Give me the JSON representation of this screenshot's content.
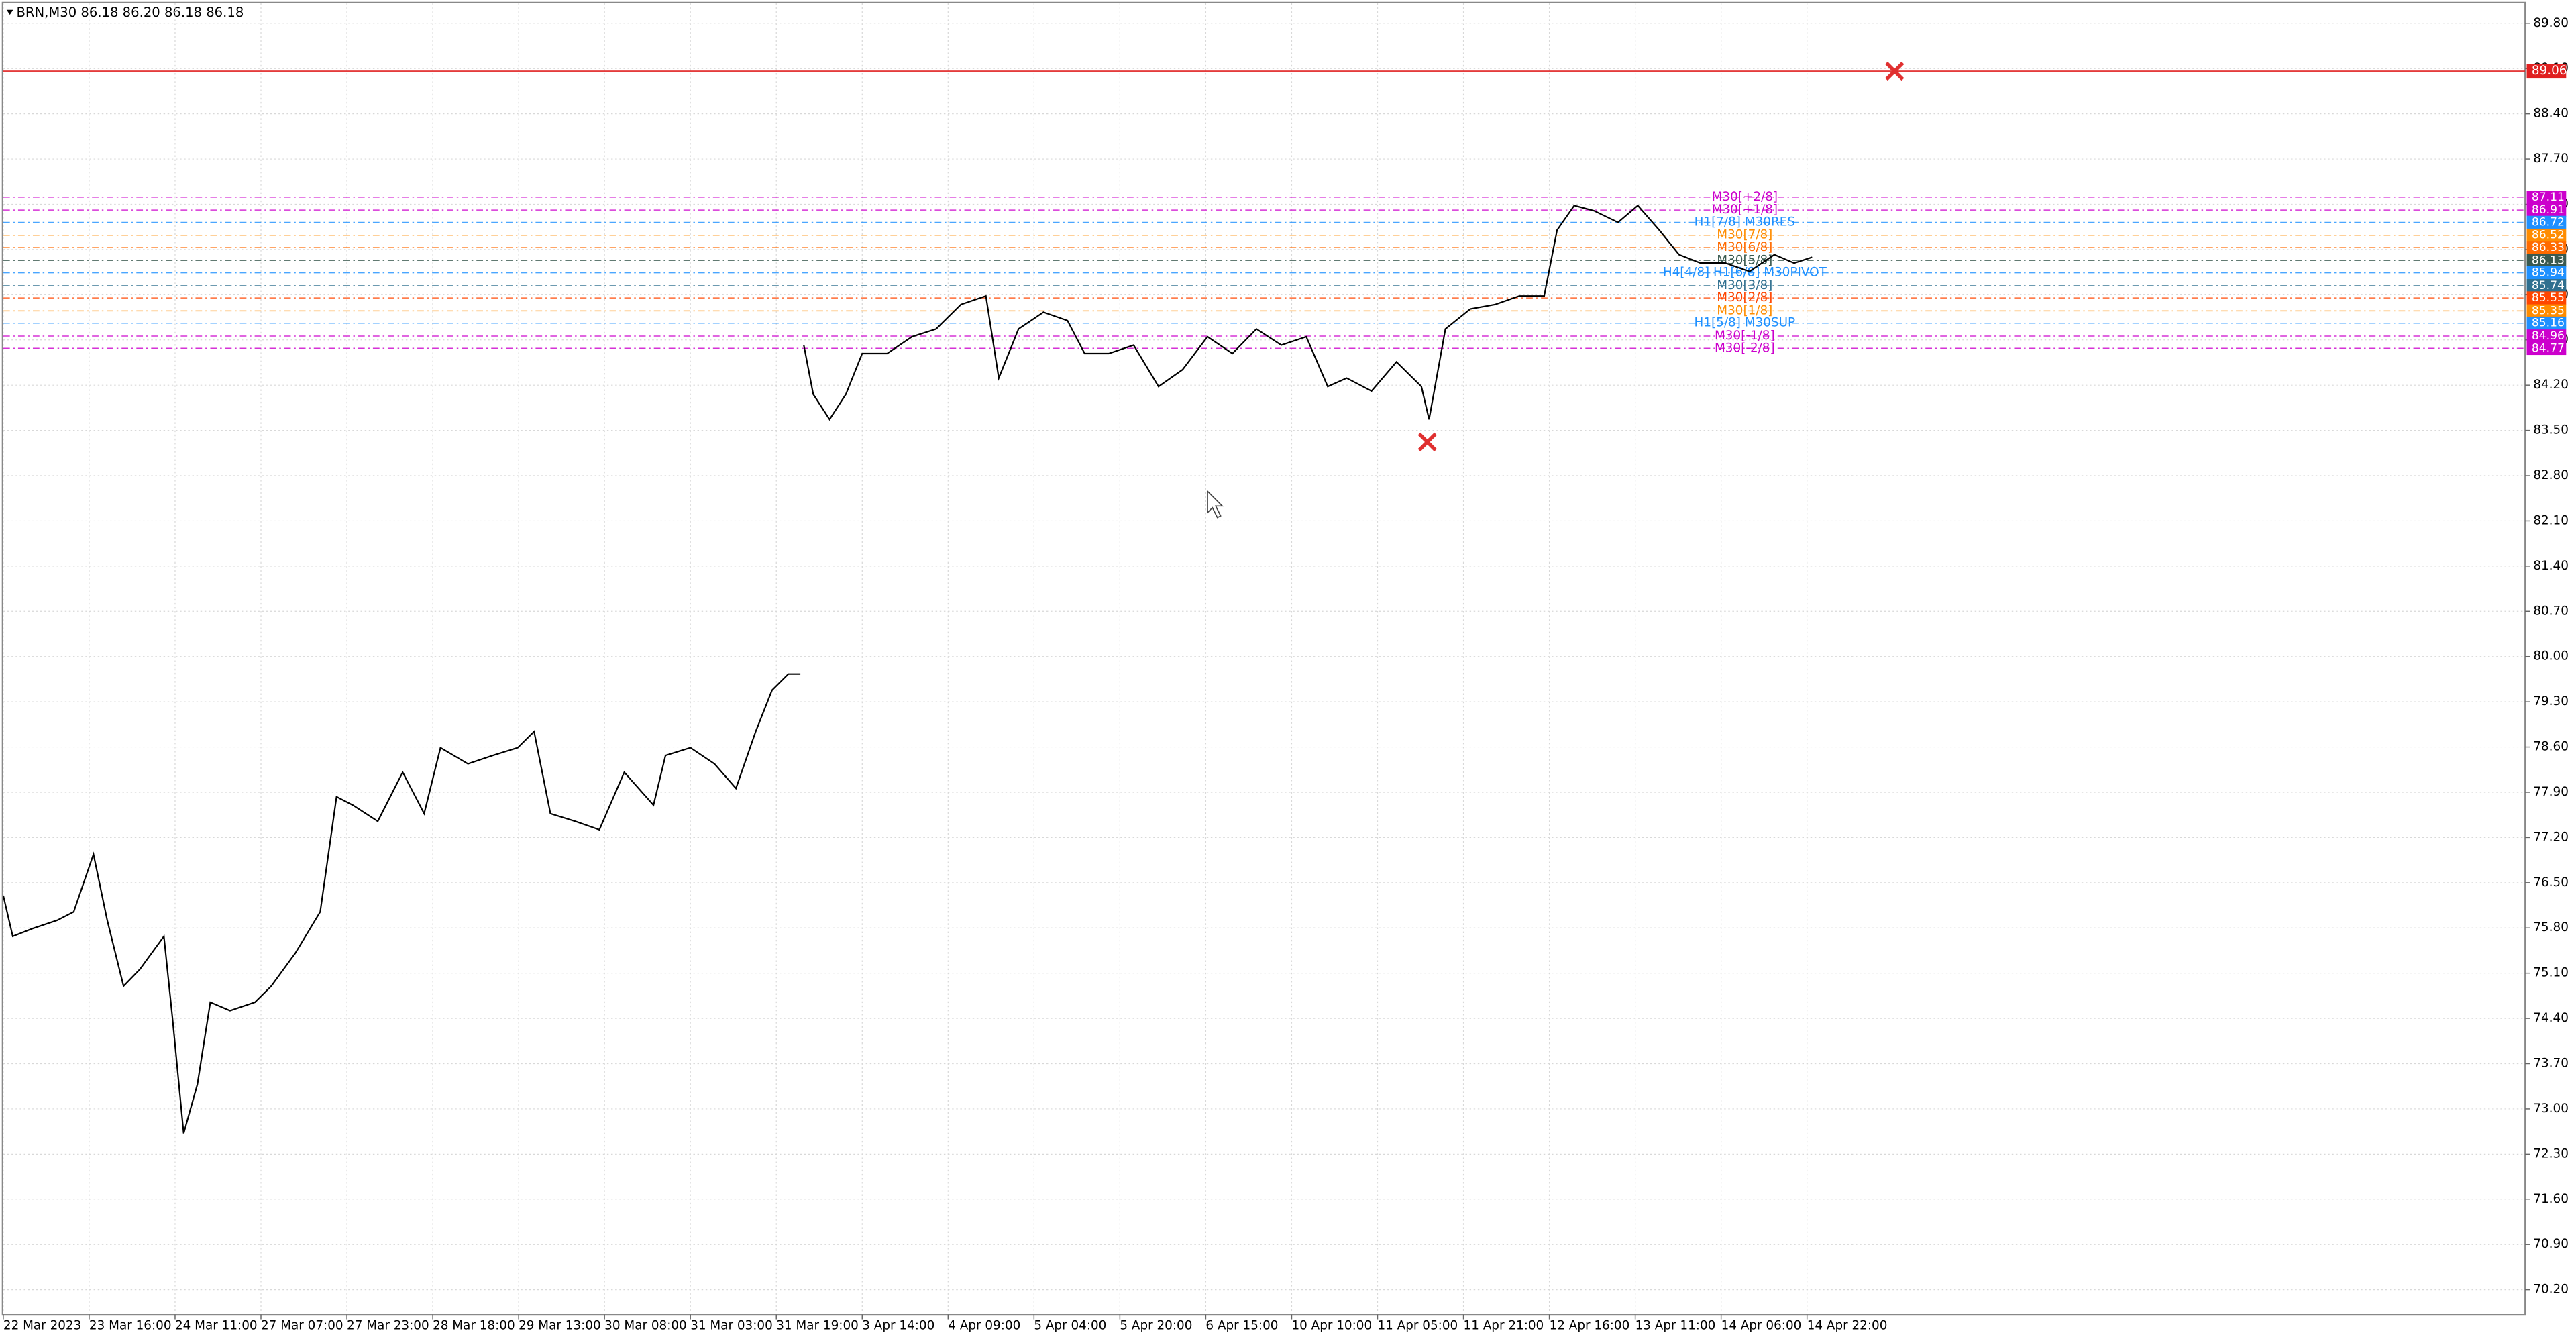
{
  "chart_data": {
    "type": "line",
    "title": "BRN,M30  86.18 86.20 86.18 86.18",
    "color": "#000000",
    "grid": true,
    "xlim": [
      0,
      29.36
    ],
    "ylim": [
      69.82,
      90.11
    ],
    "xticks": [
      {
        "value": 0,
        "label": "22 Mar 2023"
      },
      {
        "value": 1,
        "label": "23 Mar 16:00"
      },
      {
        "value": 2,
        "label": "24 Mar 11:00"
      },
      {
        "value": 3,
        "label": "27 Mar 07:00"
      },
      {
        "value": 4,
        "label": "27 Mar 23:00"
      },
      {
        "value": 5,
        "label": "28 Mar 18:00"
      },
      {
        "value": 6,
        "label": "29 Mar 13:00"
      },
      {
        "value": 7,
        "label": "30 Mar 08:00"
      },
      {
        "value": 8,
        "label": "31 Mar 03:00"
      },
      {
        "value": 9,
        "label": "31 Mar 19:00"
      },
      {
        "value": 10,
        "label": "3 Apr 14:00"
      },
      {
        "value": 11,
        "label": "4 Apr 09:00"
      },
      {
        "value": 12,
        "label": "5 Apr 04:00"
      },
      {
        "value": 13,
        "label": "5 Apr 20:00"
      },
      {
        "value": 14,
        "label": "6 Apr 15:00"
      },
      {
        "value": 15,
        "label": "10 Apr 10:00"
      },
      {
        "value": 16,
        "label": "11 Apr 05:00"
      },
      {
        "value": 17,
        "label": "11 Apr 21:00"
      },
      {
        "value": 18,
        "label": "12 Apr 16:00"
      },
      {
        "value": 19,
        "label": "13 Apr 11:00"
      },
      {
        "value": 20,
        "label": "14 Apr 06:00"
      },
      {
        "value": 21,
        "label": "14 Apr 22:00"
      }
    ],
    "yticks": [
      {
        "value": 70.2,
        "label": "70.20"
      },
      {
        "value": 70.9,
        "label": "70.90"
      },
      {
        "value": 71.6,
        "label": "71.60"
      },
      {
        "value": 72.3,
        "label": "72.30"
      },
      {
        "value": 73.0,
        "label": "73.00"
      },
      {
        "value": 73.7,
        "label": "73.70"
      },
      {
        "value": 74.4,
        "label": "74.40"
      },
      {
        "value": 75.1,
        "label": "75.10"
      },
      {
        "value": 75.8,
        "label": "75.80"
      },
      {
        "value": 76.5,
        "label": "76.50"
      },
      {
        "value": 77.2,
        "label": "77.20"
      },
      {
        "value": 77.9,
        "label": "77.90"
      },
      {
        "value": 78.6,
        "label": "78.60"
      },
      {
        "value": 79.3,
        "label": "79.30"
      },
      {
        "value": 80.0,
        "label": "80.00"
      },
      {
        "value": 80.7,
        "label": "80.70"
      },
      {
        "value": 81.4,
        "label": "81.40"
      },
      {
        "value": 82.1,
        "label": "82.10"
      },
      {
        "value": 82.8,
        "label": "82.80"
      },
      {
        "value": 83.5,
        "label": "83.50"
      },
      {
        "value": 84.2,
        "label": "84.20"
      },
      {
        "value": 84.9,
        "label": "84.90"
      },
      {
        "value": 85.6,
        "label": "85.60"
      },
      {
        "value": 86.3,
        "label": "86.30"
      },
      {
        "value": 87.0,
        "label": "87.00"
      },
      {
        "value": 87.7,
        "label": "87.70"
      },
      {
        "value": 88.4,
        "label": "88.40"
      },
      {
        "value": 89.1,
        "label": "89.10"
      },
      {
        "value": 89.8,
        "label": "89.80"
      }
    ],
    "x": [
      0,
      0.11,
      0.34,
      0.63,
      0.82,
      1.05,
      1.21,
      1.4,
      1.59,
      1.87,
      1.97,
      2.1,
      2.26,
      2.41,
      2.64,
      2.93,
      3.12,
      3.4,
      3.69,
      3.88,
      4.07,
      4.36,
      4.65,
      4.9,
      5.09,
      5.41,
      5.7,
      5.99,
      6.18,
      6.37,
      6.66,
      6.94,
      7.23,
      7.57,
      7.71,
      8.0,
      8.28,
      8.53,
      8.76,
      8.95,
      9.14,
      9.28,
      9.3,
      9.32,
      9.43,
      9.62,
      9.81,
      10.0,
      10.29,
      10.58,
      10.86,
      11.15,
      11.44,
      11.59,
      11.82,
      12.11,
      12.39,
      12.59,
      12.87,
      13.16,
      13.45,
      13.73,
      14.02,
      14.31,
      14.59,
      14.88,
      15.17,
      15.42,
      15.64,
      15.93,
      16.22,
      16.51,
      16.6,
      16.79,
      17.08,
      17.37,
      17.65,
      17.94,
      18.09,
      18.29,
      18.52,
      18.8,
      19.03,
      19.28,
      19.51,
      19.76,
      20.05,
      20.33,
      20.62,
      20.85,
      21.06
    ],
    "values": [
      76.3,
      75.67,
      75.79,
      75.92,
      76.05,
      76.94,
      75.92,
      74.9,
      75.16,
      75.67,
      74.4,
      72.62,
      73.38,
      74.65,
      74.52,
      74.65,
      74.9,
      75.41,
      76.05,
      77.83,
      77.7,
      77.45,
      78.21,
      77.57,
      78.59,
      78.34,
      78.47,
      78.59,
      78.84,
      77.57,
      77.45,
      77.32,
      78.21,
      77.7,
      78.47,
      78.59,
      78.34,
      77.96,
      78.84,
      79.48,
      79.73,
      79.73,
      null,
      84.82,
      84.06,
      83.67,
      84.06,
      84.69,
      84.69,
      84.95,
      85.07,
      85.45,
      85.58,
      84.31,
      85.07,
      85.33,
      85.2,
      84.69,
      84.69,
      84.82,
      84.18,
      84.44,
      84.95,
      84.69,
      85.07,
      84.82,
      84.95,
      84.18,
      84.31,
      84.11,
      84.56,
      84.18,
      83.67,
      85.07,
      85.38,
      85.45,
      85.58,
      85.58,
      86.6,
      86.98,
      86.9,
      86.72,
      86.98,
      86.6,
      86.22,
      86.09,
      86.09,
      85.96,
      86.22,
      86.09,
      86.18
    ],
    "hline": {
      "value": 89.06,
      "color": "#e02020"
    },
    "levels": [
      {
        "name": "M30[+2/8]",
        "value": 87.11,
        "color": "#cc00cc"
      },
      {
        "name": "M30[+1/8]",
        "value": 86.91,
        "color": "#cc00cc"
      },
      {
        "name": "H1[7/8] M30RES",
        "value": 86.72,
        "color": "#1e90ff"
      },
      {
        "name": "M30[7/8]",
        "value": 86.52,
        "color": "#ff8c00"
      },
      {
        "name": "M30[6/8]",
        "value": 86.33,
        "color": "#ff6a00"
      },
      {
        "name": "M30[5/8]",
        "value": 86.13,
        "color": "#3a5a50"
      },
      {
        "name": "H4[4/8] H1[6/8] M30PIVOT",
        "value": 85.94,
        "color": "#1e90ff"
      },
      {
        "name": "M30[3/8]",
        "value": 85.74,
        "color": "#2f6f8f"
      },
      {
        "name": "M30[2/8]",
        "value": 85.55,
        "color": "#ff4500"
      },
      {
        "name": "M30[1/8]",
        "value": 85.35,
        "color": "#ff8c00"
      },
      {
        "name": "H1[5/8] M30SUP",
        "value": 85.16,
        "color": "#1e90ff"
      },
      {
        "name": "M30[-1/8]",
        "value": 84.96,
        "color": "#cc00cc"
      },
      {
        "name": "M30[-2/8]",
        "value": 84.77,
        "color": "#cc00cc"
      }
    ],
    "markers": [
      {
        "x": 16.58,
        "y": 83.32,
        "color": "#e03030"
      },
      {
        "x": 22.02,
        "y": 89.06,
        "color": "#e03030"
      }
    ]
  }
}
